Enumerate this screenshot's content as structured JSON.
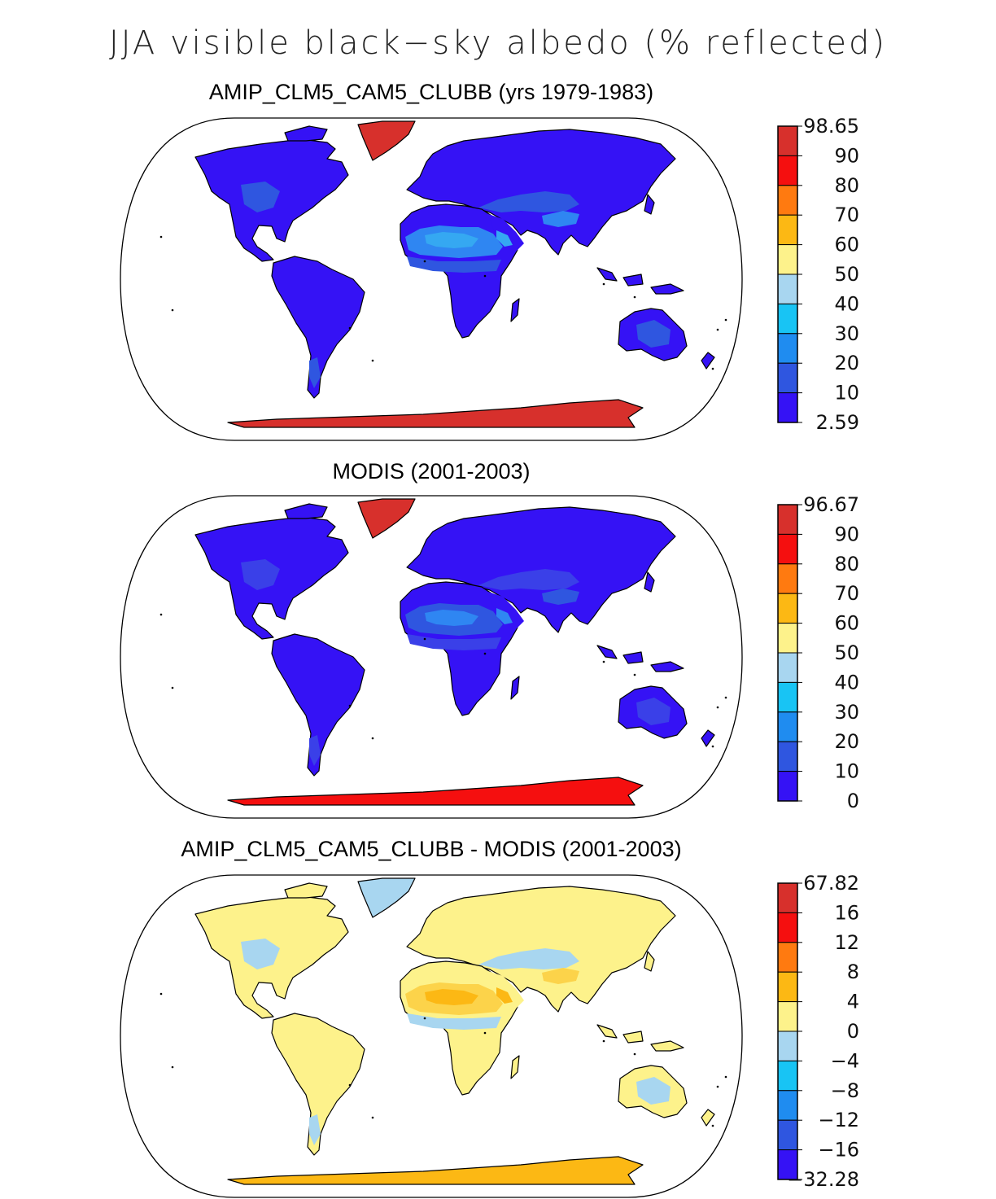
{
  "figure": {
    "title": "JJA visible black−sky albedo (% reflected)"
  },
  "palette": {
    "ocean": "#ffffff",
    "coast": "#000000"
  },
  "panels": [
    {
      "title": "AMIP_CLM5_CAM5_CLUBB (yrs 1979-1983)",
      "colorbar": {
        "labels": [
          "98.65",
          "90",
          "80",
          "70",
          "60",
          "50",
          "40",
          "30",
          "20",
          "10",
          "2.59"
        ],
        "colors": [
          "#d7302c",
          "#f50f0f",
          "#ff7a10",
          "#fcb814",
          "#fdf28b",
          "#a8d6f0",
          "#18c4f4",
          "#1f8cf0",
          "#2f56e0",
          "#3512f5"
        ]
      },
      "fills": {
        "land": "#3512f5",
        "desert": "#2f86f2",
        "desert_core": "#35a8f2",
        "steppe": "#2f56e0",
        "greenland": "#d7302c",
        "antarctica": "#d7302c"
      }
    },
    {
      "title": "MODIS (2001-2003)",
      "colorbar": {
        "labels": [
          "96.67",
          "90",
          "80",
          "70",
          "60",
          "50",
          "40",
          "30",
          "20",
          "10",
          "0"
        ],
        "colors": [
          "#d7302c",
          "#f50f0f",
          "#ff7a10",
          "#fcb814",
          "#fdf28b",
          "#a8d6f0",
          "#18c4f4",
          "#1f8cf0",
          "#2f56e0",
          "#3512f5"
        ]
      },
      "fills": {
        "land": "#3512f5",
        "desert": "#2f56e0",
        "desert_core": "#2f86f2",
        "steppe": "#3a40e8",
        "greenland": "#d7302c",
        "antarctica": "#f50f0f"
      }
    },
    {
      "title": "AMIP_CLM5_CAM5_CLUBB - MODIS (2001-2003)",
      "colorbar": {
        "labels": [
          "67.82",
          "16",
          "12",
          "8",
          "4",
          "0",
          "−4",
          "−8",
          "−12",
          "−16",
          "−32.28"
        ],
        "colors": [
          "#d7302c",
          "#f50f0f",
          "#ff7a10",
          "#fcb814",
          "#fdf28b",
          "#a8d6f0",
          "#18c4f4",
          "#1f8cf0",
          "#2f56e0",
          "#3512f5"
        ]
      },
      "fills": {
        "land": "#fdf28b",
        "desert": "#fcd34a",
        "desert_core": "#fcb814",
        "steppe": "#a8d6f0",
        "greenland": "#a8d6f0",
        "antarctica": "#fcb814"
      }
    }
  ]
}
